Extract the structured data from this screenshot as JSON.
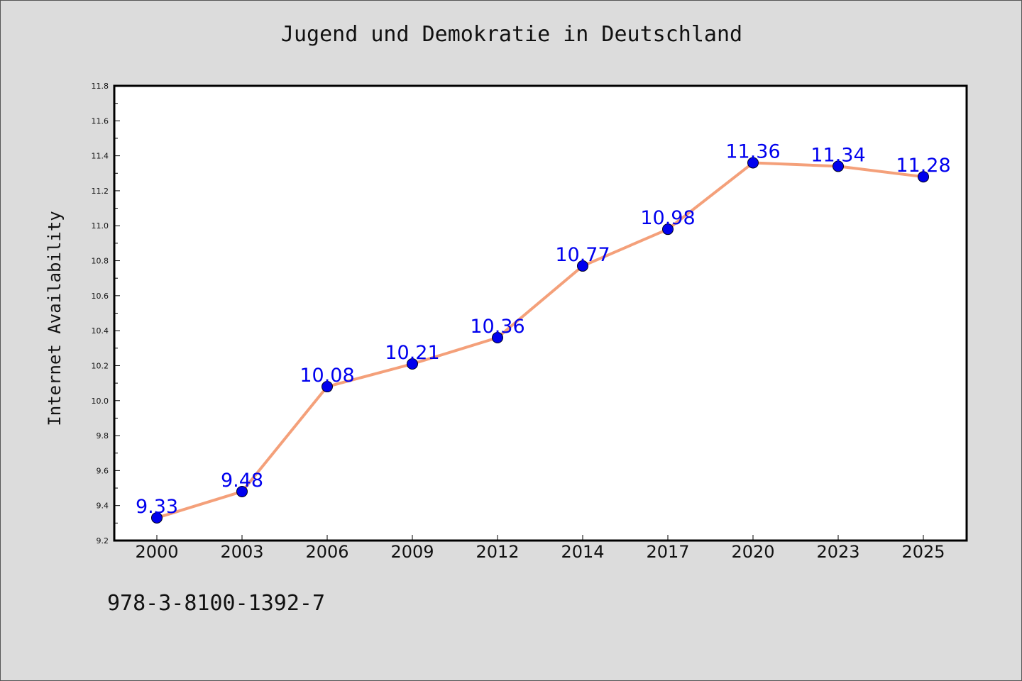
{
  "chart_data": {
    "type": "line",
    "title": "Jugend und Demokratie in Deutschland",
    "xlabel": "",
    "ylabel": "Internet Availability",
    "categories": [
      "2000",
      "2003",
      "2006",
      "2009",
      "2012",
      "2014",
      "2017",
      "2020",
      "2023",
      "2025"
    ],
    "series": [
      {
        "values": [
          9.33,
          9.48,
          10.08,
          10.21,
          10.36,
          10.77,
          10.98,
          11.36,
          11.34,
          11.28
        ],
        "labels": [
          "9.33",
          "9.48",
          "10.08",
          "10.21",
          "10.36",
          "10.77",
          "10.98",
          "11.36",
          "11.34",
          "11.28"
        ],
        "line_color": "#f4a07a",
        "marker_color": "#0000ee"
      }
    ],
    "ylim": [
      9.2,
      11.8
    ],
    "yticks": [
      "9.2",
      "9.4",
      "9.6",
      "9.8",
      "10.0",
      "10.2",
      "10.4",
      "10.6",
      "10.8",
      "11.0",
      "11.2",
      "11.4",
      "11.6",
      "11.8"
    ],
    "grid": false,
    "legend": "none"
  },
  "footer": {
    "isbn": "978-3-8100-1392-7"
  },
  "colors": {
    "background": "#dcdcdc",
    "plot_background": "#ffffff",
    "label_color": "#0000ee"
  }
}
